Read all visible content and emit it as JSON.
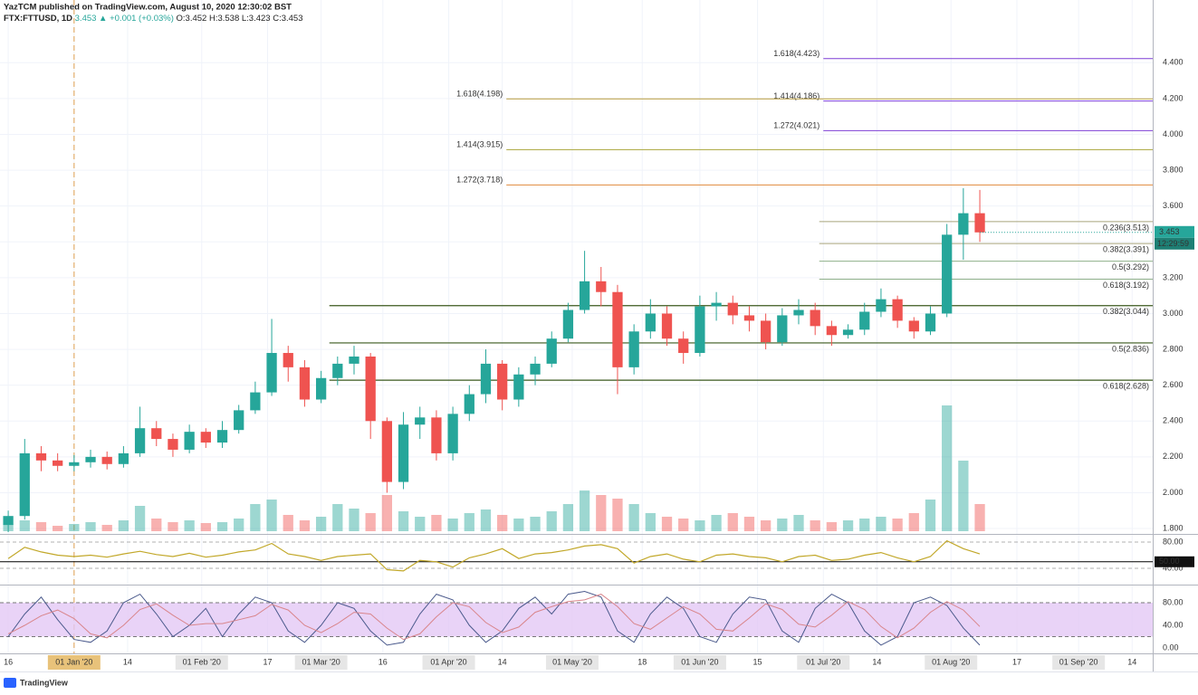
{
  "chart_data": {
    "type": "candlestick",
    "title": "YazTCM published on TradingView.com, August 10, 2020 12:30:02 BST",
    "symbol": "FTX:FTTUSD, 1D",
    "quote": "3.453 ▲ +0.001 (+0.03%)",
    "ohlc": "O:3.452 H:3.538 L:3.423 C:3.453",
    "brand": "TradingView",
    "up_color": "#26a69a",
    "down_color": "#ef5350",
    "x": [
      "2019-12-16",
      "2019-12-20",
      "2019-12-24",
      "2019-12-28",
      "2020-01-01",
      "2020-01-05",
      "2020-01-09",
      "2020-01-13",
      "2020-01-17",
      "2020-01-21",
      "2020-01-25",
      "2020-01-29",
      "2020-02-02",
      "2020-02-06",
      "2020-02-10",
      "2020-02-14",
      "2020-02-18",
      "2020-02-22",
      "2020-02-26",
      "2020-03-01",
      "2020-03-05",
      "2020-03-09",
      "2020-03-13",
      "2020-03-17",
      "2020-03-21",
      "2020-03-25",
      "2020-03-29",
      "2020-04-02",
      "2020-04-06",
      "2020-04-10",
      "2020-04-14",
      "2020-04-18",
      "2020-04-22",
      "2020-04-26",
      "2020-04-30",
      "2020-05-04",
      "2020-05-08",
      "2020-05-12",
      "2020-05-16",
      "2020-05-20",
      "2020-05-24",
      "2020-05-28",
      "2020-06-01",
      "2020-06-05",
      "2020-06-09",
      "2020-06-13",
      "2020-06-17",
      "2020-06-21",
      "2020-06-25",
      "2020-06-29",
      "2020-07-03",
      "2020-07-07",
      "2020-07-11",
      "2020-07-15",
      "2020-07-19",
      "2020-07-23",
      "2020-07-27",
      "2020-07-31",
      "2020-08-04",
      "2020-08-08"
    ],
    "open": [
      1.82,
      1.87,
      2.22,
      2.18,
      2.15,
      2.17,
      2.2,
      2.16,
      2.22,
      2.36,
      2.3,
      2.24,
      2.34,
      2.28,
      2.35,
      2.46,
      2.56,
      2.78,
      2.7,
      2.52,
      2.64,
      2.72,
      2.76,
      2.4,
      2.06,
      2.38,
      2.42,
      2.22,
      2.44,
      2.55,
      2.72,
      2.52,
      2.66,
      2.72,
      2.86,
      3.02,
      3.18,
      3.12,
      2.7,
      2.9,
      3.0,
      2.86,
      2.78,
      3.04,
      3.06,
      2.99,
      2.96,
      2.84,
      2.99,
      3.02,
      2.93,
      2.88,
      2.91,
      3.01,
      3.08,
      2.96,
      2.9,
      3.0,
      3.44,
      3.56
    ],
    "high": [
      1.9,
      2.3,
      2.26,
      2.22,
      2.21,
      2.24,
      2.23,
      2.26,
      2.48,
      2.4,
      2.33,
      2.38,
      2.36,
      2.4,
      2.49,
      2.62,
      2.97,
      2.82,
      2.74,
      2.68,
      2.76,
      2.82,
      2.78,
      2.42,
      2.45,
      2.48,
      2.46,
      2.48,
      2.6,
      2.8,
      2.74,
      2.7,
      2.76,
      2.9,
      3.06,
      3.35,
      3.26,
      3.16,
      2.94,
      3.08,
      3.04,
      2.9,
      3.1,
      3.12,
      3.1,
      3.04,
      3.0,
      3.03,
      3.08,
      3.06,
      2.96,
      2.94,
      3.06,
      3.14,
      3.1,
      2.98,
      3.04,
      3.5,
      3.7,
      3.69
    ],
    "low": [
      1.78,
      1.85,
      2.12,
      2.12,
      2.12,
      2.14,
      2.13,
      2.14,
      2.2,
      2.26,
      2.2,
      2.22,
      2.25,
      2.25,
      2.33,
      2.44,
      2.54,
      2.62,
      2.48,
      2.5,
      2.6,
      2.66,
      2.3,
      2.0,
      2.02,
      2.3,
      2.18,
      2.18,
      2.4,
      2.5,
      2.46,
      2.48,
      2.6,
      2.7,
      2.84,
      3.0,
      3.04,
      2.55,
      2.66,
      2.86,
      2.82,
      2.72,
      2.76,
      2.96,
      2.94,
      2.9,
      2.8,
      2.82,
      2.94,
      2.88,
      2.82,
      2.86,
      2.88,
      2.98,
      2.92,
      2.86,
      2.88,
      2.98,
      3.3,
      3.4
    ],
    "close": [
      1.87,
      2.22,
      2.18,
      2.15,
      2.17,
      2.2,
      2.16,
      2.22,
      2.36,
      2.3,
      2.24,
      2.34,
      2.28,
      2.35,
      2.46,
      2.56,
      2.78,
      2.7,
      2.52,
      2.64,
      2.72,
      2.76,
      2.4,
      2.06,
      2.38,
      2.42,
      2.22,
      2.44,
      2.55,
      2.72,
      2.52,
      2.66,
      2.72,
      2.86,
      3.02,
      3.18,
      3.12,
      2.7,
      2.9,
      3.0,
      2.86,
      2.78,
      3.04,
      3.06,
      2.99,
      2.96,
      2.84,
      2.99,
      3.02,
      2.93,
      2.88,
      2.91,
      3.01,
      3.08,
      2.96,
      2.9,
      3.0,
      3.44,
      3.56,
      3.453
    ],
    "volume": [
      8,
      12,
      10,
      6,
      8,
      10,
      7,
      12,
      28,
      14,
      10,
      12,
      9,
      10,
      14,
      30,
      35,
      18,
      12,
      16,
      30,
      25,
      20,
      40,
      22,
      16,
      18,
      14,
      20,
      24,
      18,
      14,
      16,
      22,
      30,
      45,
      40,
      36,
      30,
      20,
      16,
      14,
      12,
      18,
      20,
      16,
      12,
      14,
      18,
      12,
      10,
      12,
      14,
      16,
      14,
      20,
      35,
      139,
      78,
      30
    ],
    "xlim": [
      "2019-12-14",
      "2020-09-19"
    ],
    "xticks": [
      {
        "value": "2019-12-16",
        "label": "16"
      },
      {
        "value": "2020-01-01",
        "label": "01 Jan '20"
      },
      {
        "value": "2020-01-14",
        "label": "14"
      },
      {
        "value": "2020-02-01",
        "label": "01 Feb '20"
      },
      {
        "value": "2020-02-17",
        "label": "17"
      },
      {
        "value": "2020-03-01",
        "label": "01 Mar '20"
      },
      {
        "value": "2020-03-16",
        "label": "16"
      },
      {
        "value": "2020-04-01",
        "label": "01 Apr '20"
      },
      {
        "value": "2020-04-14",
        "label": "14"
      },
      {
        "value": "2020-05-01",
        "label": "01 May '20"
      },
      {
        "value": "2020-05-18",
        "label": "18"
      },
      {
        "value": "2020-06-01",
        "label": "01 Jun '20"
      },
      {
        "value": "2020-06-15",
        "label": "15"
      },
      {
        "value": "2020-07-01",
        "label": "01 Jul '20"
      },
      {
        "value": "2020-07-14",
        "label": "14"
      },
      {
        "value": "2020-08-01",
        "label": "01 Aug '20"
      },
      {
        "value": "2020-08-17",
        "label": "17"
      },
      {
        "value": "2020-09-01",
        "label": "01 Sep '20"
      },
      {
        "value": "2020-09-14",
        "label": "14"
      }
    ],
    "crosshair_x": "2020-01-01",
    "ylim": [
      1.77,
      4.75
    ],
    "yticks": [
      {
        "value": 1.8,
        "label": "1.800"
      },
      {
        "value": 2.0,
        "label": "2.000"
      },
      {
        "value": 2.2,
        "label": "2.200"
      },
      {
        "value": 2.4,
        "label": "2.400"
      },
      {
        "value": 2.6,
        "label": "2.600"
      },
      {
        "value": 2.8,
        "label": "2.800"
      },
      {
        "value": 3.0,
        "label": "3.000"
      },
      {
        "value": 3.2,
        "label": "3.200"
      },
      {
        "value": 3.4,
        "label": "3.400"
      },
      {
        "value": 3.6,
        "label": "3.600"
      },
      {
        "value": 3.8,
        "label": "3.800"
      },
      {
        "value": 4.0,
        "label": "4.000"
      },
      {
        "value": 4.2,
        "label": "4.200"
      },
      {
        "value": 4.4,
        "label": "4.400"
      }
    ],
    "grid": true,
    "last_price": {
      "value": 3.453,
      "label": "3.453",
      "countdown": "12:29:59"
    },
    "extensions": [
      {
        "value": 4.423,
        "label": "1.618(4.423)",
        "start": "2020-07-01",
        "color": "#7e3fd6"
      },
      {
        "value": 4.186,
        "label": "1.414(4.186)",
        "start": "2020-07-01",
        "color": "#7e3fd6"
      },
      {
        "value": 4.021,
        "label": "1.272(4.021)",
        "start": "2020-07-01",
        "color": "#7e3fd6"
      },
      {
        "value": 4.198,
        "label": "1.618(4.198)",
        "start": "2020-04-15",
        "color": "#b59a3c"
      },
      {
        "value": 3.915,
        "label": "1.414(3.915)",
        "start": "2020-04-15",
        "color": "#a8a53a"
      },
      {
        "value": 3.718,
        "label": "1.272(3.718)",
        "start": "2020-04-15",
        "color": "#e08a3c"
      }
    ],
    "retracements": [
      {
        "value": 3.513,
        "label": "0.236(3.513)",
        "start": "2020-06-30",
        "color": "#a9a57c"
      },
      {
        "value": 3.391,
        "label": "0.382(3.391)",
        "start": "2020-06-30",
        "color": "#a9a57c"
      },
      {
        "value": 3.292,
        "label": "0.5(3.292)",
        "start": "2020-06-30",
        "color": "#8fb08a"
      },
      {
        "value": 3.192,
        "label": "0.618(3.192)",
        "start": "2020-06-30",
        "color": "#8fb08a"
      },
      {
        "value": 3.044,
        "label": "0.382(3.044)",
        "start": "2020-03-03",
        "color": "#3b5a1e"
      },
      {
        "value": 2.836,
        "label": "0.5(2.836)",
        "start": "2020-03-03",
        "color": "#3b5a1e"
      },
      {
        "value": 2.628,
        "label": "0.618(2.628)",
        "start": "2020-03-03",
        "color": "#3b5a1e"
      }
    ],
    "rsi": {
      "color": "#c2a82a",
      "ylim": [
        16.6,
        89.7
      ],
      "yticks": [
        {
          "value": 80,
          "label": "80.00"
        },
        {
          "value": 40,
          "label": "40.00"
        }
      ],
      "midline": {
        "value": 50,
        "label": "50.00"
      },
      "values": [
        55,
        72,
        65,
        60,
        58,
        60,
        57,
        62,
        66,
        61,
        58,
        63,
        57,
        60,
        65,
        68,
        78,
        62,
        58,
        52,
        58,
        60,
        62,
        38,
        36,
        52,
        50,
        42,
        56,
        62,
        70,
        55,
        62,
        64,
        68,
        74,
        76,
        70,
        48,
        58,
        62,
        54,
        50,
        60,
        62,
        58,
        56,
        50,
        58,
        60,
        52,
        54,
        60,
        64,
        56,
        50,
        58,
        82,
        70,
        62
      ]
    },
    "stoch": {
      "k_color": "#4b5a8c",
      "d_color": "#d9858b",
      "band": [
        20,
        80
      ],
      "band_color": "#e3c8f5",
      "ylim": [
        -9.6,
        108.8
      ],
      "yticks": [
        {
          "value": 80,
          "label": "80.00"
        },
        {
          "value": 40,
          "label": "40.00"
        },
        {
          "value": 0,
          "label": "0.00"
        }
      ],
      "k": [
        20,
        60,
        90,
        50,
        15,
        10,
        30,
        80,
        95,
        60,
        20,
        40,
        70,
        20,
        60,
        90,
        80,
        30,
        10,
        40,
        80,
        70,
        30,
        5,
        10,
        60,
        95,
        85,
        40,
        10,
        30,
        70,
        90,
        60,
        95,
        100,
        90,
        30,
        10,
        60,
        90,
        70,
        20,
        10,
        60,
        90,
        85,
        30,
        10,
        70,
        95,
        80,
        30,
        5,
        20,
        80,
        90,
        75,
        35,
        5
      ],
      "d": [
        25,
        40,
        57,
        67,
        52,
        25,
        18,
        40,
        68,
        78,
        58,
        40,
        43,
        43,
        50,
        57,
        77,
        67,
        40,
        27,
        43,
        63,
        60,
        35,
        15,
        25,
        55,
        80,
        73,
        45,
        27,
        37,
        63,
        73,
        82,
        85,
        95,
        73,
        43,
        33,
        53,
        73,
        60,
        33,
        30,
        53,
        78,
        68,
        42,
        37,
        58,
        82,
        68,
        38,
        18,
        35,
        63,
        82,
        67,
        38
      ]
    }
  }
}
